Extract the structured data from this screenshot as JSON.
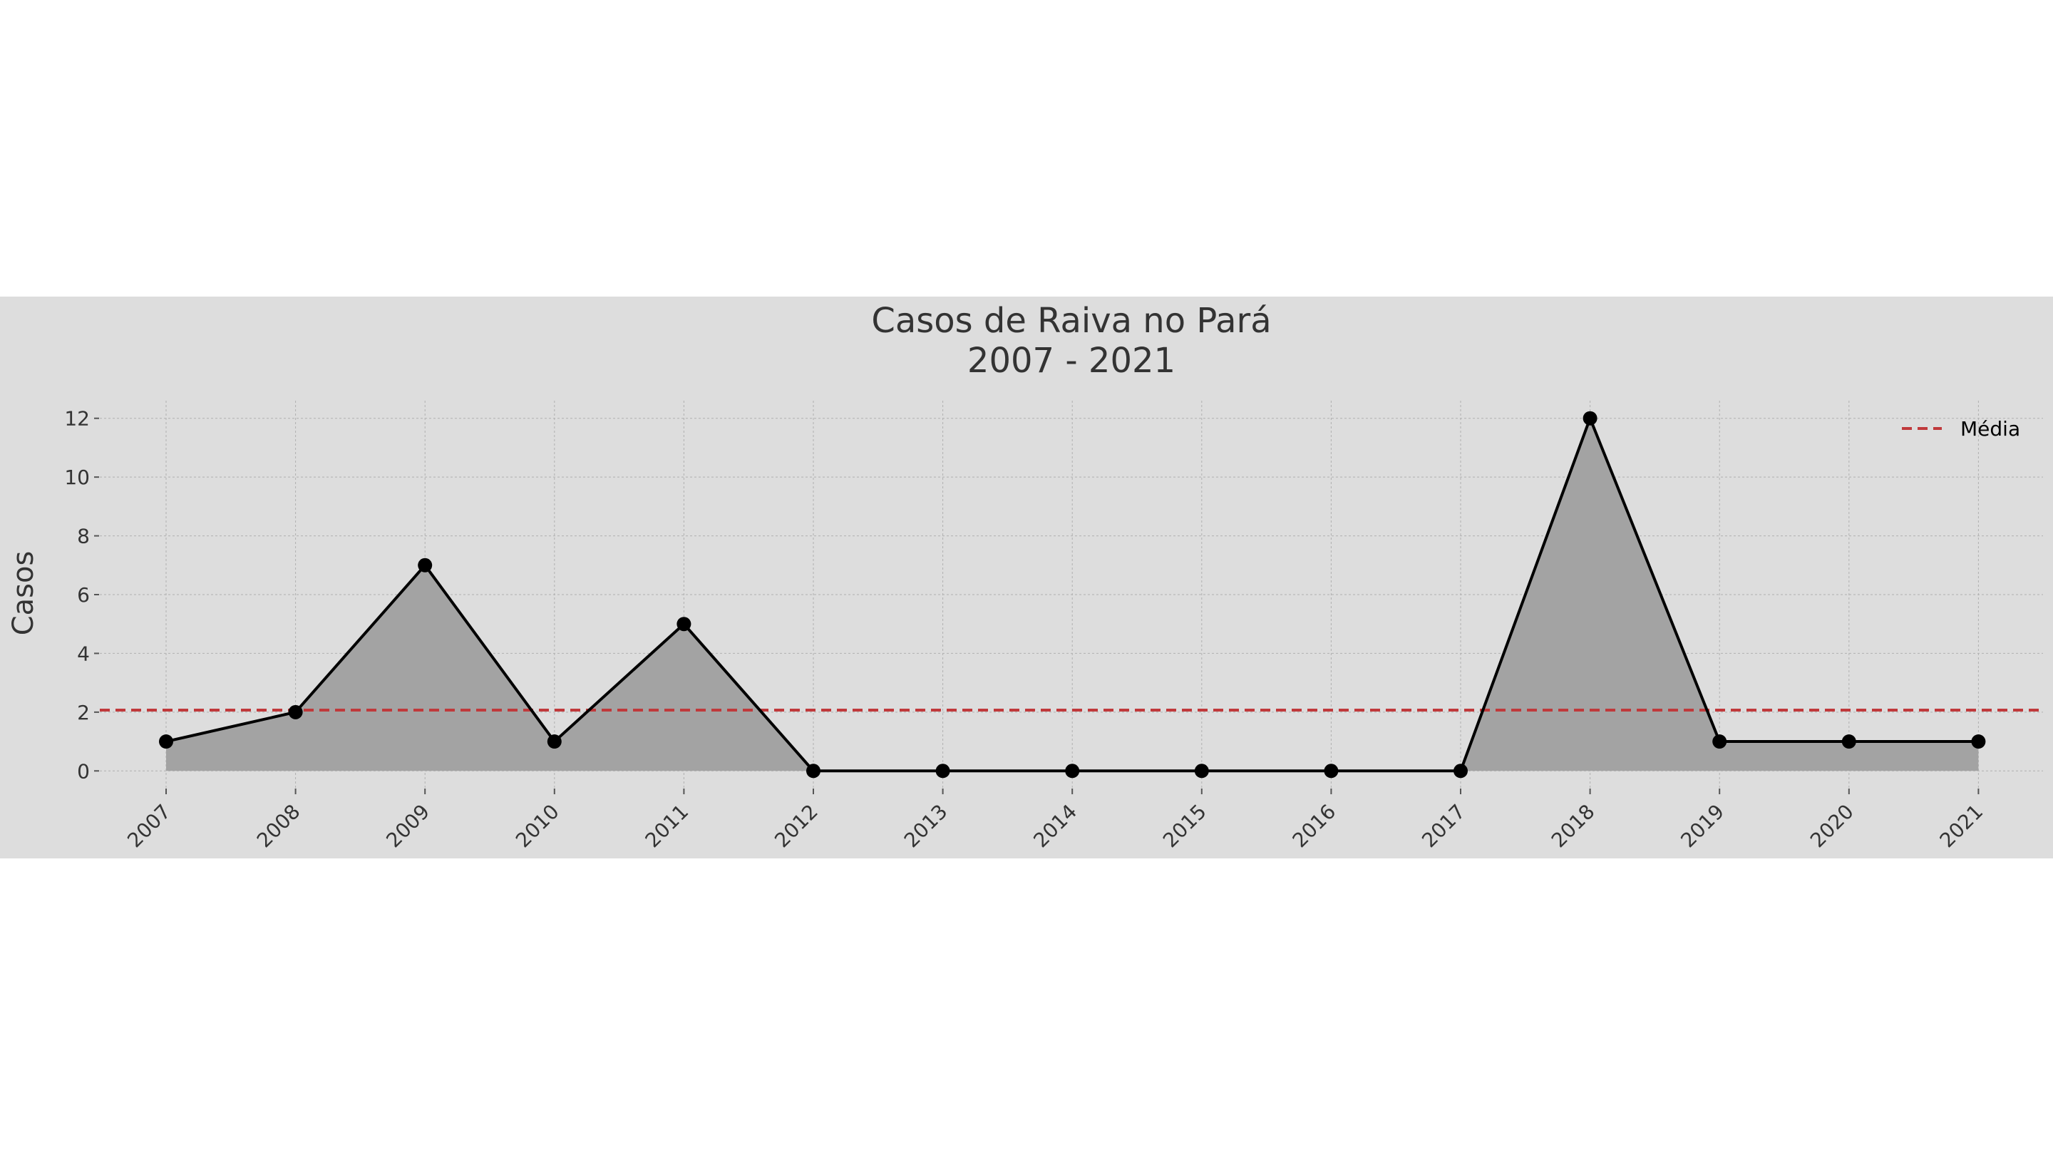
{
  "chart_data": {
    "type": "area",
    "title_line1": "Casos de Raiva no Pará",
    "title_line2": "2007 - 2021",
    "xlabel": "",
    "ylabel": "Casos",
    "categories": [
      "2007",
      "2008",
      "2009",
      "2010",
      "2011",
      "2012",
      "2013",
      "2014",
      "2015",
      "2016",
      "2017",
      "2018",
      "2019",
      "2020",
      "2021"
    ],
    "values": [
      1,
      2,
      7,
      1,
      5,
      0,
      0,
      0,
      0,
      0,
      0,
      12,
      1,
      1,
      1
    ],
    "mean": 2.07,
    "yticks": [
      "0",
      "2",
      "4",
      "6",
      "8",
      "10",
      "12"
    ],
    "ylim": [
      -0.6,
      12.6
    ],
    "grid": true,
    "legend": {
      "placement": "top-right",
      "entries": [
        "Média"
      ]
    },
    "colors": {
      "line": "#000000",
      "fill": "#a3a3a3",
      "mean_line": "#c0393b",
      "background": "#dddddd",
      "grid": "#b0b0b0"
    }
  }
}
